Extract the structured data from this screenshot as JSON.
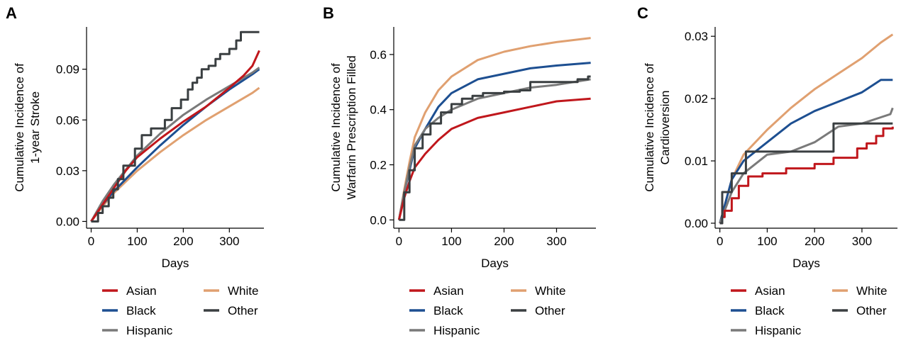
{
  "figure": {
    "panels": [
      {
        "letter": "A",
        "chart_data": {
          "type": "line",
          "title": "",
          "xlabel": "Days",
          "ylabel_lines": [
            "Cumulative Incidence of",
            "1-year Stroke"
          ],
          "xlim": [
            -10,
            375
          ],
          "ylim": [
            -0.004,
            0.115
          ],
          "xticks": [
            0,
            100,
            200,
            300
          ],
          "xtick_labels": [
            "0",
            "100",
            "200",
            "300"
          ],
          "yticks": [
            0,
            0.03,
            0.06,
            0.09
          ],
          "ytick_labels": [
            "0.00",
            "0.03",
            "0.06",
            "0.09"
          ],
          "grid": false,
          "legend_position": "bottom",
          "series": [
            {
              "name": "Asian",
              "color": "#c0171c",
              "step": false,
              "x": [
                0,
                25,
                50,
                75,
                100,
                150,
                200,
                250,
                300,
                330,
                350,
                365
              ],
              "y": [
                0,
                0.01,
                0.02,
                0.03,
                0.038,
                0.049,
                0.059,
                0.068,
                0.079,
                0.086,
                0.092,
                0.101
              ]
            },
            {
              "name": "Black",
              "color": "#1d4f91",
              "step": false,
              "x": [
                0,
                25,
                50,
                100,
                150,
                200,
                250,
                300,
                350,
                365
              ],
              "y": [
                0,
                0.01,
                0.018,
                0.032,
                0.045,
                0.057,
                0.068,
                0.078,
                0.087,
                0.09
              ]
            },
            {
              "name": "Hispanic",
              "color": "#7a7a7a",
              "step": false,
              "x": [
                0,
                25,
                50,
                100,
                150,
                200,
                250,
                300,
                350,
                365
              ],
              "y": [
                0,
                0.012,
                0.022,
                0.039,
                0.052,
                0.063,
                0.072,
                0.08,
                0.088,
                0.091
              ]
            },
            {
              "name": "White",
              "color": "#e0a070",
              "step": false,
              "x": [
                0,
                25,
                50,
                100,
                150,
                200,
                250,
                300,
                350,
                365
              ],
              "y": [
                0,
                0.009,
                0.017,
                0.03,
                0.041,
                0.051,
                0.06,
                0.068,
                0.076,
                0.079
              ]
            },
            {
              "name": "Other",
              "color": "#3a3f41",
              "step": true,
              "x": [
                0,
                15,
                25,
                38,
                48,
                58,
                70,
                95,
                110,
                130,
                160,
                175,
                195,
                210,
                220,
                230,
                240,
                255,
                270,
                280,
                300,
                315,
                325,
                365
              ],
              "y": [
                0,
                0.005,
                0.009,
                0.014,
                0.019,
                0.025,
                0.033,
                0.043,
                0.051,
                0.055,
                0.06,
                0.067,
                0.072,
                0.078,
                0.082,
                0.085,
                0.09,
                0.092,
                0.096,
                0.099,
                0.102,
                0.107,
                0.112,
                0.112
              ]
            }
          ]
        }
      },
      {
        "letter": "B",
        "chart_data": {
          "type": "line",
          "title": "",
          "xlabel": "Days",
          "ylabel_lines": [
            "Cumulative Incidence of",
            "Warfarin Prescription Filled"
          ],
          "xlim": [
            -10,
            375
          ],
          "ylim": [
            -0.03,
            0.7
          ],
          "xticks": [
            0,
            100,
            200,
            300
          ],
          "xtick_labels": [
            "0",
            "100",
            "200",
            "300"
          ],
          "yticks": [
            0,
            0.2,
            0.4,
            0.6
          ],
          "ytick_labels": [
            "0.0",
            "0.2",
            "0.4",
            "0.6"
          ],
          "grid": false,
          "legend_position": "bottom",
          "series": [
            {
              "name": "Asian",
              "color": "#c0171c",
              "step": false,
              "x": [
                0,
                10,
                20,
                30,
                50,
                75,
                100,
                150,
                200,
                250,
                300,
                365
              ],
              "y": [
                0,
                0.08,
                0.14,
                0.19,
                0.24,
                0.29,
                0.33,
                0.37,
                0.39,
                0.41,
                0.43,
                0.44
              ]
            },
            {
              "name": "Black",
              "color": "#1d4f91",
              "step": false,
              "x": [
                0,
                10,
                20,
                30,
                50,
                75,
                100,
                150,
                200,
                250,
                300,
                365
              ],
              "y": [
                0,
                0.1,
                0.18,
                0.26,
                0.33,
                0.41,
                0.46,
                0.51,
                0.53,
                0.55,
                0.56,
                0.57
              ]
            },
            {
              "name": "Hispanic",
              "color": "#7a7a7a",
              "step": false,
              "x": [
                0,
                10,
                20,
                30,
                50,
                75,
                100,
                150,
                200,
                250,
                300,
                365
              ],
              "y": [
                0,
                0.1,
                0.19,
                0.27,
                0.33,
                0.37,
                0.4,
                0.44,
                0.46,
                0.48,
                0.49,
                0.51
              ]
            },
            {
              "name": "White",
              "color": "#e0a070",
              "step": false,
              "x": [
                0,
                10,
                20,
                30,
                50,
                75,
                100,
                150,
                200,
                250,
                300,
                365
              ],
              "y": [
                0,
                0.11,
                0.21,
                0.3,
                0.39,
                0.47,
                0.52,
                0.58,
                0.61,
                0.63,
                0.645,
                0.66
              ]
            },
            {
              "name": "Other",
              "color": "#3a3f41",
              "step": true,
              "x": [
                0,
                10,
                20,
                30,
                45,
                60,
                80,
                100,
                120,
                140,
                160,
                200,
                230,
                250,
                320,
                340,
                360,
                365
              ],
              "y": [
                0,
                0.1,
                0.18,
                0.26,
                0.31,
                0.35,
                0.39,
                0.42,
                0.44,
                0.45,
                0.46,
                0.465,
                0.47,
                0.5,
                0.5,
                0.51,
                0.52,
                0.52
              ]
            }
          ]
        }
      },
      {
        "letter": "C",
        "chart_data": {
          "type": "line",
          "title": "",
          "xlabel": "Days",
          "ylabel_lines": [
            "Cumulative Incidence of",
            "Cardioversion"
          ],
          "xlim": [
            -10,
            375
          ],
          "ylim": [
            -0.0008,
            0.0315
          ],
          "xticks": [
            0,
            100,
            200,
            300
          ],
          "xtick_labels": [
            "0",
            "100",
            "200",
            "300"
          ],
          "yticks": [
            0,
            0.01,
            0.02,
            0.03
          ],
          "ytick_labels": [
            "0.00",
            "0.01",
            "0.02",
            "0.03"
          ],
          "grid": false,
          "legend_position": "bottom",
          "series": [
            {
              "name": "Asian",
              "color": "#c0171c",
              "step": true,
              "x": [
                0,
                5,
                10,
                25,
                40,
                60,
                90,
                140,
                200,
                240,
                270,
                290,
                310,
                330,
                345,
                365
              ],
              "y": [
                0,
                0.001,
                0.002,
                0.004,
                0.006,
                0.0075,
                0.008,
                0.0088,
                0.0095,
                0.0105,
                0.0105,
                0.012,
                0.0128,
                0.014,
                0.0152,
                0.0155
              ]
            },
            {
              "name": "Black",
              "color": "#1d4f91",
              "step": false,
              "x": [
                0,
                25,
                50,
                100,
                150,
                200,
                250,
                300,
                340,
                365
              ],
              "y": [
                0,
                0.007,
                0.01,
                0.013,
                0.016,
                0.018,
                0.0195,
                0.021,
                0.023,
                0.023
              ]
            },
            {
              "name": "Hispanic",
              "color": "#7a7a7a",
              "step": false,
              "x": [
                0,
                25,
                50,
                100,
                150,
                200,
                250,
                300,
                340,
                360,
                365
              ],
              "y": [
                0,
                0.005,
                0.008,
                0.011,
                0.0115,
                0.013,
                0.0155,
                0.016,
                0.017,
                0.0175,
                0.0185
              ]
            },
            {
              "name": "White",
              "color": "#e0a070",
              "step": false,
              "x": [
                0,
                25,
                50,
                100,
                150,
                200,
                250,
                300,
                340,
                365
              ],
              "y": [
                0,
                0.007,
                0.011,
                0.015,
                0.0185,
                0.0215,
                0.024,
                0.0265,
                0.029,
                0.0303
              ]
            },
            {
              "name": "Other",
              "color": "#3a3f41",
              "step": true,
              "x": [
                0,
                5,
                25,
                55,
                150,
                240,
                365
              ],
              "y": [
                0,
                0.005,
                0.008,
                0.0115,
                0.0115,
                0.016,
                0.016
              ]
            }
          ]
        }
      }
    ],
    "legend_columns": [
      [
        "Asian",
        "Black",
        "Hispanic"
      ],
      [
        "White",
        "Other"
      ]
    ]
  }
}
